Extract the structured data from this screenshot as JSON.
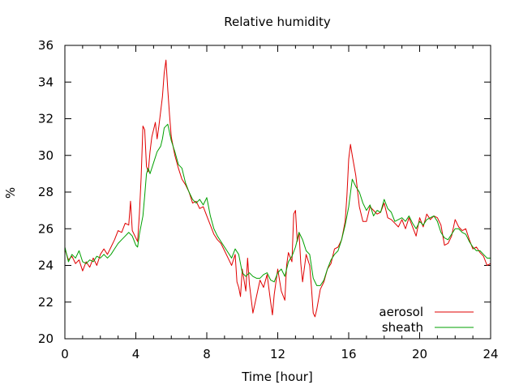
{
  "chart_data": {
    "type": "line",
    "title": "Relative humidity",
    "xlabel": "Time [hour]",
    "ylabel": "%",
    "xlim": [
      0,
      24
    ],
    "ylim": [
      20,
      36
    ],
    "xticks": [
      0,
      4,
      8,
      12,
      16,
      20,
      24
    ],
    "yticks": [
      20,
      22,
      24,
      26,
      28,
      30,
      32,
      34,
      36
    ],
    "grid": false,
    "legend_position": "bottom-right",
    "series": [
      {
        "name": "aerosol",
        "color": "#e00000",
        "points": [
          [
            0,
            24.9
          ],
          [
            0.2,
            24.3
          ],
          [
            0.4,
            24.5
          ],
          [
            0.6,
            24.1
          ],
          [
            0.8,
            24.3
          ],
          [
            1.0,
            23.7
          ],
          [
            1.2,
            24.2
          ],
          [
            1.4,
            23.9
          ],
          [
            1.6,
            24.4
          ],
          [
            1.8,
            24.0
          ],
          [
            2.0,
            24.6
          ],
          [
            2.2,
            24.9
          ],
          [
            2.4,
            24.6
          ],
          [
            2.6,
            25.0
          ],
          [
            2.8,
            25.4
          ],
          [
            3.0,
            25.9
          ],
          [
            3.2,
            25.8
          ],
          [
            3.4,
            26.3
          ],
          [
            3.6,
            26.2
          ],
          [
            3.7,
            27.5
          ],
          [
            3.8,
            25.9
          ],
          [
            4.0,
            25.5
          ],
          [
            4.1,
            25.3
          ],
          [
            4.2,
            26.8
          ],
          [
            4.3,
            28.8
          ],
          [
            4.4,
            31.6
          ],
          [
            4.5,
            31.4
          ],
          [
            4.6,
            29.4
          ],
          [
            4.7,
            29.1
          ],
          [
            4.8,
            30.2
          ],
          [
            4.9,
            31.0
          ],
          [
            5.0,
            31.4
          ],
          [
            5.1,
            31.8
          ],
          [
            5.2,
            30.9
          ],
          [
            5.3,
            31.6
          ],
          [
            5.4,
            32.4
          ],
          [
            5.5,
            33.2
          ],
          [
            5.6,
            34.5
          ],
          [
            5.7,
            35.2
          ],
          [
            5.8,
            33.6
          ],
          [
            5.9,
            32.2
          ],
          [
            6.0,
            31.0
          ],
          [
            6.2,
            30.0
          ],
          [
            6.4,
            29.3
          ],
          [
            6.6,
            28.7
          ],
          [
            6.8,
            28.4
          ],
          [
            7.0,
            28.0
          ],
          [
            7.2,
            27.4
          ],
          [
            7.4,
            27.5
          ],
          [
            7.6,
            27.1
          ],
          [
            7.8,
            27.2
          ],
          [
            8.0,
            26.7
          ],
          [
            8.2,
            26.2
          ],
          [
            8.4,
            25.7
          ],
          [
            8.6,
            25.4
          ],
          [
            8.8,
            25.2
          ],
          [
            9.0,
            24.8
          ],
          [
            9.2,
            24.4
          ],
          [
            9.4,
            24.0
          ],
          [
            9.6,
            24.6
          ],
          [
            9.7,
            23.1
          ],
          [
            9.8,
            22.8
          ],
          [
            9.9,
            22.3
          ],
          [
            10.0,
            23.8
          ],
          [
            10.2,
            22.6
          ],
          [
            10.3,
            24.4
          ],
          [
            10.4,
            23.0
          ],
          [
            10.6,
            21.4
          ],
          [
            10.8,
            22.3
          ],
          [
            11.0,
            23.2
          ],
          [
            11.2,
            22.8
          ],
          [
            11.4,
            23.5
          ],
          [
            11.6,
            22.0
          ],
          [
            11.7,
            21.3
          ],
          [
            11.8,
            22.4
          ],
          [
            12.0,
            23.8
          ],
          [
            12.2,
            22.6
          ],
          [
            12.4,
            22.1
          ],
          [
            12.5,
            24.0
          ],
          [
            12.6,
            24.7
          ],
          [
            12.8,
            24.2
          ],
          [
            12.9,
            26.8
          ],
          [
            13.0,
            27.0
          ],
          [
            13.1,
            25.3
          ],
          [
            13.2,
            25.8
          ],
          [
            13.3,
            24.1
          ],
          [
            13.4,
            23.1
          ],
          [
            13.6,
            24.6
          ],
          [
            13.8,
            24.0
          ],
          [
            13.9,
            22.8
          ],
          [
            14.0,
            21.4
          ],
          [
            14.1,
            21.2
          ],
          [
            14.2,
            21.6
          ],
          [
            14.4,
            22.7
          ],
          [
            14.6,
            23.1
          ],
          [
            14.8,
            23.8
          ],
          [
            15.0,
            24.1
          ],
          [
            15.2,
            24.9
          ],
          [
            15.4,
            25.0
          ],
          [
            15.6,
            25.4
          ],
          [
            15.8,
            26.4
          ],
          [
            15.9,
            27.8
          ],
          [
            16.0,
            29.8
          ],
          [
            16.1,
            30.6
          ],
          [
            16.2,
            30.0
          ],
          [
            16.4,
            28.9
          ],
          [
            16.6,
            27.2
          ],
          [
            16.8,
            26.4
          ],
          [
            17.0,
            26.4
          ],
          [
            17.2,
            27.2
          ],
          [
            17.4,
            27.0
          ],
          [
            17.6,
            26.8
          ],
          [
            17.8,
            26.9
          ],
          [
            18.0,
            27.4
          ],
          [
            18.2,
            26.6
          ],
          [
            18.4,
            26.5
          ],
          [
            18.6,
            26.3
          ],
          [
            18.8,
            26.1
          ],
          [
            19.0,
            26.5
          ],
          [
            19.2,
            26.0
          ],
          [
            19.4,
            26.6
          ],
          [
            19.6,
            26.1
          ],
          [
            19.8,
            25.6
          ],
          [
            20.0,
            26.6
          ],
          [
            20.2,
            26.1
          ],
          [
            20.4,
            26.8
          ],
          [
            20.6,
            26.5
          ],
          [
            20.8,
            26.7
          ],
          [
            21.0,
            26.6
          ],
          [
            21.2,
            26.2
          ],
          [
            21.4,
            25.1
          ],
          [
            21.6,
            25.2
          ],
          [
            21.8,
            25.6
          ],
          [
            22.0,
            26.5
          ],
          [
            22.2,
            26.1
          ],
          [
            22.4,
            25.9
          ],
          [
            22.6,
            26.0
          ],
          [
            22.8,
            25.4
          ],
          [
            23.0,
            24.9
          ],
          [
            23.2,
            25.0
          ],
          [
            23.4,
            24.7
          ],
          [
            23.6,
            24.5
          ],
          [
            23.8,
            24.0
          ],
          [
            24.0,
            24.1
          ]
        ]
      },
      {
        "name": "sheath",
        "color": "#00a000",
        "points": [
          [
            0,
            25.0
          ],
          [
            0.2,
            24.2
          ],
          [
            0.4,
            24.6
          ],
          [
            0.6,
            24.4
          ],
          [
            0.8,
            24.8
          ],
          [
            1.0,
            24.2
          ],
          [
            1.2,
            24.1
          ],
          [
            1.4,
            24.3
          ],
          [
            1.6,
            24.2
          ],
          [
            1.8,
            24.5
          ],
          [
            2.0,
            24.4
          ],
          [
            2.2,
            24.6
          ],
          [
            2.4,
            24.4
          ],
          [
            2.6,
            24.6
          ],
          [
            2.8,
            24.9
          ],
          [
            3.0,
            25.2
          ],
          [
            3.2,
            25.4
          ],
          [
            3.4,
            25.6
          ],
          [
            3.6,
            25.8
          ],
          [
            3.8,
            25.6
          ],
          [
            4.0,
            25.1
          ],
          [
            4.1,
            25.0
          ],
          [
            4.2,
            25.7
          ],
          [
            4.4,
            26.7
          ],
          [
            4.5,
            27.8
          ],
          [
            4.6,
            29.0
          ],
          [
            4.7,
            29.3
          ],
          [
            4.8,
            29.0
          ],
          [
            5.0,
            29.6
          ],
          [
            5.2,
            30.2
          ],
          [
            5.4,
            30.5
          ],
          [
            5.5,
            30.9
          ],
          [
            5.6,
            31.5
          ],
          [
            5.7,
            31.6
          ],
          [
            5.8,
            31.7
          ],
          [
            6.0,
            30.8
          ],
          [
            6.2,
            30.2
          ],
          [
            6.4,
            29.5
          ],
          [
            6.6,
            29.3
          ],
          [
            6.8,
            28.5
          ],
          [
            7.0,
            28.0
          ],
          [
            7.2,
            27.6
          ],
          [
            7.4,
            27.4
          ],
          [
            7.6,
            27.6
          ],
          [
            7.8,
            27.3
          ],
          [
            8.0,
            27.7
          ],
          [
            8.2,
            26.7
          ],
          [
            8.4,
            26.0
          ],
          [
            8.6,
            25.6
          ],
          [
            8.8,
            25.3
          ],
          [
            9.0,
            25.0
          ],
          [
            9.2,
            24.7
          ],
          [
            9.4,
            24.4
          ],
          [
            9.6,
            24.9
          ],
          [
            9.8,
            24.6
          ],
          [
            10.0,
            23.6
          ],
          [
            10.2,
            23.4
          ],
          [
            10.4,
            23.6
          ],
          [
            10.6,
            23.4
          ],
          [
            10.8,
            23.3
          ],
          [
            11.0,
            23.3
          ],
          [
            11.2,
            23.5
          ],
          [
            11.4,
            23.6
          ],
          [
            11.6,
            23.2
          ],
          [
            11.8,
            23.1
          ],
          [
            12.0,
            23.6
          ],
          [
            12.2,
            23.8
          ],
          [
            12.4,
            23.4
          ],
          [
            12.6,
            24.2
          ],
          [
            12.8,
            24.5
          ],
          [
            13.0,
            25.0
          ],
          [
            13.2,
            25.8
          ],
          [
            13.4,
            25.4
          ],
          [
            13.6,
            24.8
          ],
          [
            13.8,
            24.6
          ],
          [
            14.0,
            23.3
          ],
          [
            14.2,
            22.9
          ],
          [
            14.4,
            22.9
          ],
          [
            14.6,
            23.2
          ],
          [
            14.8,
            23.8
          ],
          [
            15.0,
            24.3
          ],
          [
            15.2,
            24.6
          ],
          [
            15.4,
            24.8
          ],
          [
            15.6,
            25.4
          ],
          [
            15.8,
            26.2
          ],
          [
            16.0,
            27.2
          ],
          [
            16.2,
            28.7
          ],
          [
            16.4,
            28.3
          ],
          [
            16.6,
            28.0
          ],
          [
            16.8,
            27.4
          ],
          [
            17.0,
            27.0
          ],
          [
            17.2,
            27.3
          ],
          [
            17.4,
            26.7
          ],
          [
            17.6,
            27.0
          ],
          [
            17.8,
            26.9
          ],
          [
            18.0,
            27.6
          ],
          [
            18.2,
            27.1
          ],
          [
            18.4,
            26.9
          ],
          [
            18.6,
            26.4
          ],
          [
            18.8,
            26.5
          ],
          [
            19.0,
            26.6
          ],
          [
            19.2,
            26.4
          ],
          [
            19.4,
            26.7
          ],
          [
            19.6,
            26.3
          ],
          [
            19.8,
            26.0
          ],
          [
            20.0,
            26.4
          ],
          [
            20.2,
            26.2
          ],
          [
            20.4,
            26.5
          ],
          [
            20.6,
            26.6
          ],
          [
            20.8,
            26.7
          ],
          [
            21.0,
            26.4
          ],
          [
            21.2,
            25.8
          ],
          [
            21.4,
            25.5
          ],
          [
            21.6,
            25.4
          ],
          [
            21.8,
            25.7
          ],
          [
            22.0,
            26.0
          ],
          [
            22.2,
            26.0
          ],
          [
            22.4,
            25.8
          ],
          [
            22.6,
            25.7
          ],
          [
            22.8,
            25.3
          ],
          [
            23.0,
            25.0
          ],
          [
            23.2,
            24.8
          ],
          [
            23.4,
            24.8
          ],
          [
            23.6,
            24.6
          ],
          [
            23.8,
            24.4
          ],
          [
            24.0,
            24.4
          ]
        ]
      }
    ]
  }
}
